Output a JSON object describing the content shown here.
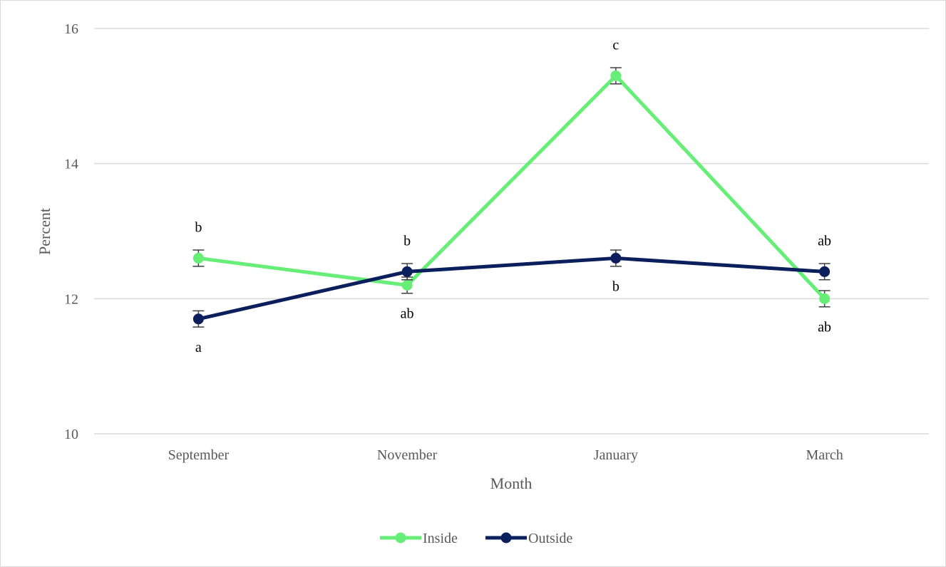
{
  "chart_data": {
    "type": "line",
    "title": "",
    "xlabel": "Month",
    "ylabel": "Percent",
    "categories": [
      "September",
      "November",
      "January",
      "March"
    ],
    "ylim": [
      10,
      16
    ],
    "yticks": [
      "10",
      "12",
      "14",
      "16"
    ],
    "grid": true,
    "legend_position": "bottom",
    "series": [
      {
        "name": "Inside",
        "color": "#66ee77",
        "values": [
          12.6,
          12.2,
          15.3,
          12.0
        ],
        "error": [
          0.12,
          0.12,
          0.12,
          0.12
        ],
        "labels": [
          "b",
          "ab",
          "c",
          "ab"
        ],
        "label_position": [
          "above",
          "below",
          "above",
          "below"
        ]
      },
      {
        "name": "Outside",
        "color": "#0b1f5c",
        "values": [
          11.7,
          12.4,
          12.6,
          12.4
        ],
        "error": [
          0.12,
          0.12,
          0.12,
          0.12
        ],
        "labels": [
          "a",
          "b",
          "b",
          "ab"
        ],
        "label_position": [
          "below",
          "above",
          "below",
          "above"
        ]
      }
    ]
  }
}
